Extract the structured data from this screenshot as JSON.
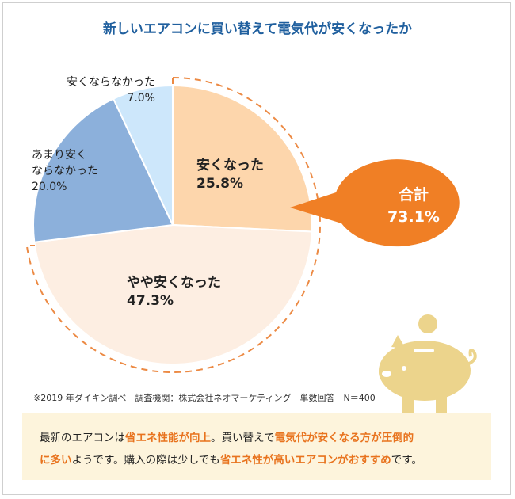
{
  "chart_data": {
    "type": "pie",
    "title": "新しいエアコンに買い替えて電気代が安くなったか",
    "slices": [
      {
        "label": "安くなった",
        "value": 25.8,
        "value_label": "25.8%",
        "color": "#fdd6ac"
      },
      {
        "label": "やや安くなった",
        "value": 47.3,
        "value_label": "47.3%",
        "color": "#fdeee2"
      },
      {
        "label": "あまり安くならなかった",
        "value": 20.0,
        "value_label": "20.0%",
        "color": "#8cb0db"
      },
      {
        "label": "安くならなかった",
        "value": 7.0,
        "value_label": "7.0%",
        "color": "#cde7fb"
      }
    ],
    "annotation": {
      "label": "合計",
      "value": "73.1%",
      "color": "#f07f25"
    }
  },
  "labels": {
    "slice0_line1": "安くなった",
    "slice0_line2": "25.8%",
    "slice1_line1": "やや安くなった",
    "slice1_line2": "47.3%",
    "slice2_line1": "あまり安く",
    "slice2_line2": "ならなかった",
    "slice2_line3": "20.0%",
    "slice3_line1": "安くならなかった",
    "slice3_line2": "7.0%"
  },
  "bubble": {
    "line1": "合計",
    "line2": "73.1%"
  },
  "source": "※2019 年ダイキン調べ　調査機関：株式会社ネオマーケティング　単数回答　N＝400",
  "note": {
    "p1": "最新のエアコンは",
    "e1": "省エネ性能が向上",
    "p2": "。買い替えで",
    "e2": "電気代が安くなる方が圧倒的",
    "e3": "に多い",
    "p3": "ようです。購入の際は少しでも",
    "e4": "省エネ性が高いエアコンがおすすめ",
    "p4": "です。"
  },
  "colors": {
    "title": "#1f5f9e",
    "accent": "#f07f25",
    "dash": "#ec8a44",
    "piggy": "#ecd48c",
    "note_bg": "#fdf4dc"
  },
  "icons": {
    "piggy": "piggy-bank-icon"
  }
}
